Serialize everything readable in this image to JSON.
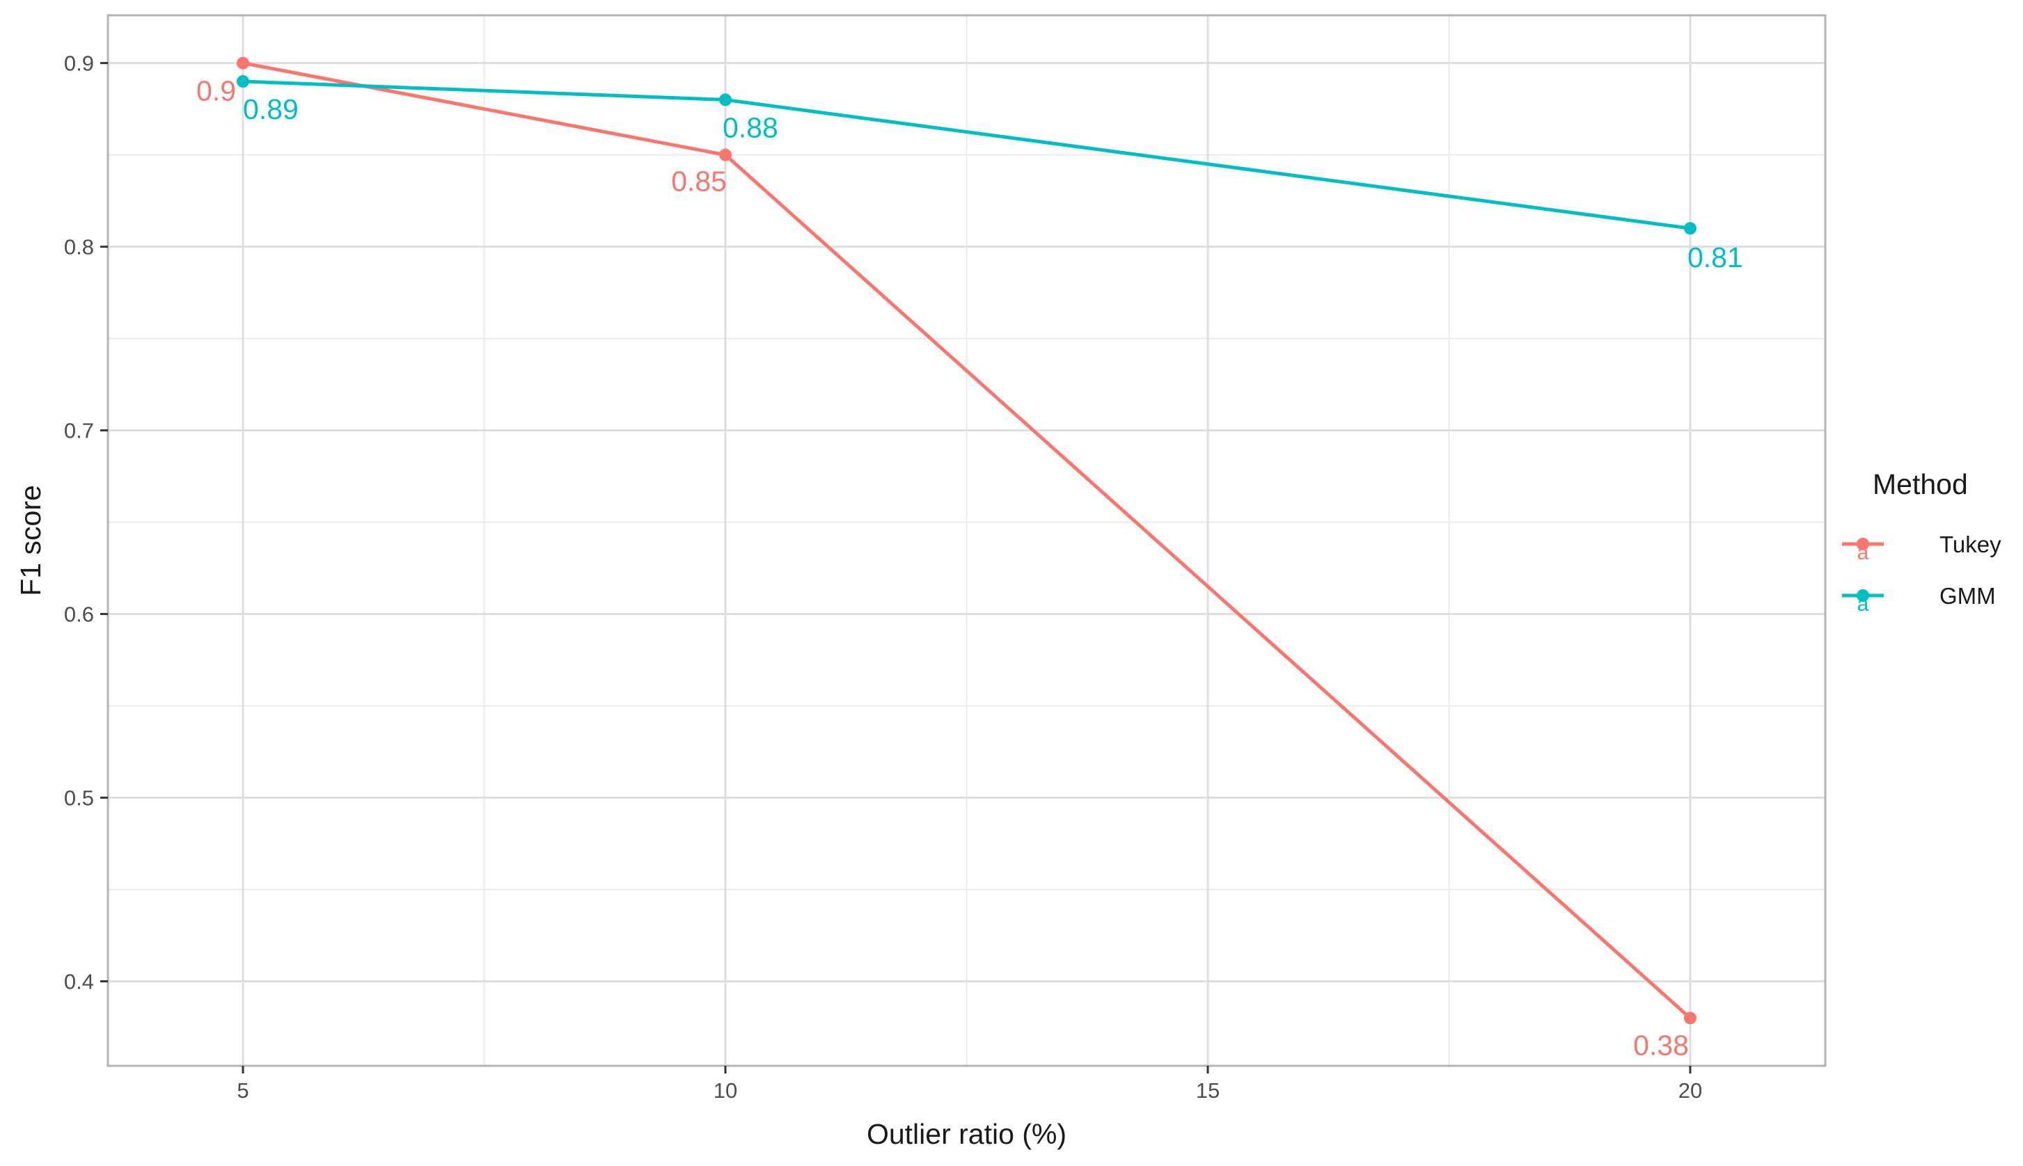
{
  "chart_data": {
    "type": "line",
    "title": "",
    "xlabel": "Outlier ratio (%)",
    "ylabel": "F1 score",
    "x": [
      5,
      10,
      20
    ],
    "xlim": [
      3.6,
      21.4
    ],
    "ylim": [
      0.354,
      0.926
    ],
    "xticks": [
      5,
      10,
      15,
      20
    ],
    "xtick_labels": [
      "5",
      "10",
      "15",
      "20"
    ],
    "yticks": [
      0.4,
      0.5,
      0.6,
      0.7,
      0.8,
      0.9
    ],
    "ytick_labels": [
      "0.4",
      "0.5",
      "0.6",
      "0.7",
      "0.8",
      "0.9"
    ],
    "grid": true,
    "legend": {
      "title": "Method",
      "position": "right",
      "key_glyph": "a"
    },
    "series": [
      {
        "name": "Tukey",
        "color": "#F8766D",
        "values": [
          0.9,
          0.85,
          0.38
        ],
        "labels": [
          "0.9",
          "0.85",
          "0.38"
        ]
      },
      {
        "name": "GMM",
        "color": "#00BFC4",
        "values": [
          0.89,
          0.88,
          0.81
        ],
        "labels": [
          "0.89",
          "0.88",
          "0.81"
        ]
      }
    ]
  }
}
